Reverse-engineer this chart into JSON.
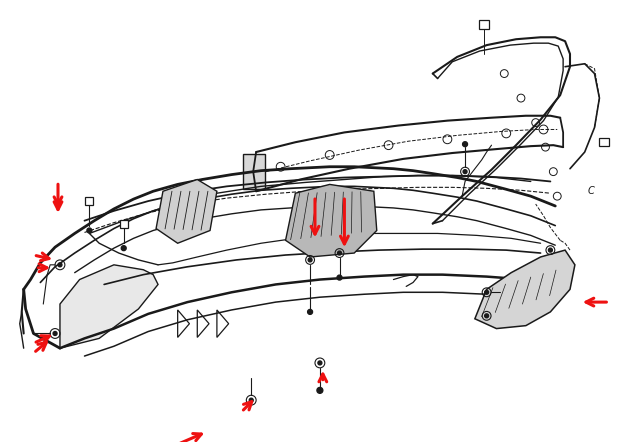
{
  "bg": "#ffffff",
  "lc": "#1a1a1a",
  "rc": "#ee1111",
  "dpi": 100,
  "fw": 6.28,
  "fh": 4.42,
  "red_arrows": [
    [
      0.028,
      0.595,
      0.062,
      0.595
    ],
    [
      0.028,
      0.455,
      0.062,
      0.455
    ],
    [
      0.028,
      0.285,
      0.065,
      0.285
    ],
    [
      0.195,
      0.445,
      0.24,
      0.48
    ],
    [
      0.315,
      0.54,
      0.315,
      0.5
    ],
    [
      0.345,
      0.54,
      0.345,
      0.5
    ],
    [
      0.38,
      0.145,
      0.38,
      0.185
    ],
    [
      0.245,
      0.09,
      0.265,
      0.125
    ],
    [
      0.615,
      0.31,
      0.575,
      0.31
    ]
  ]
}
